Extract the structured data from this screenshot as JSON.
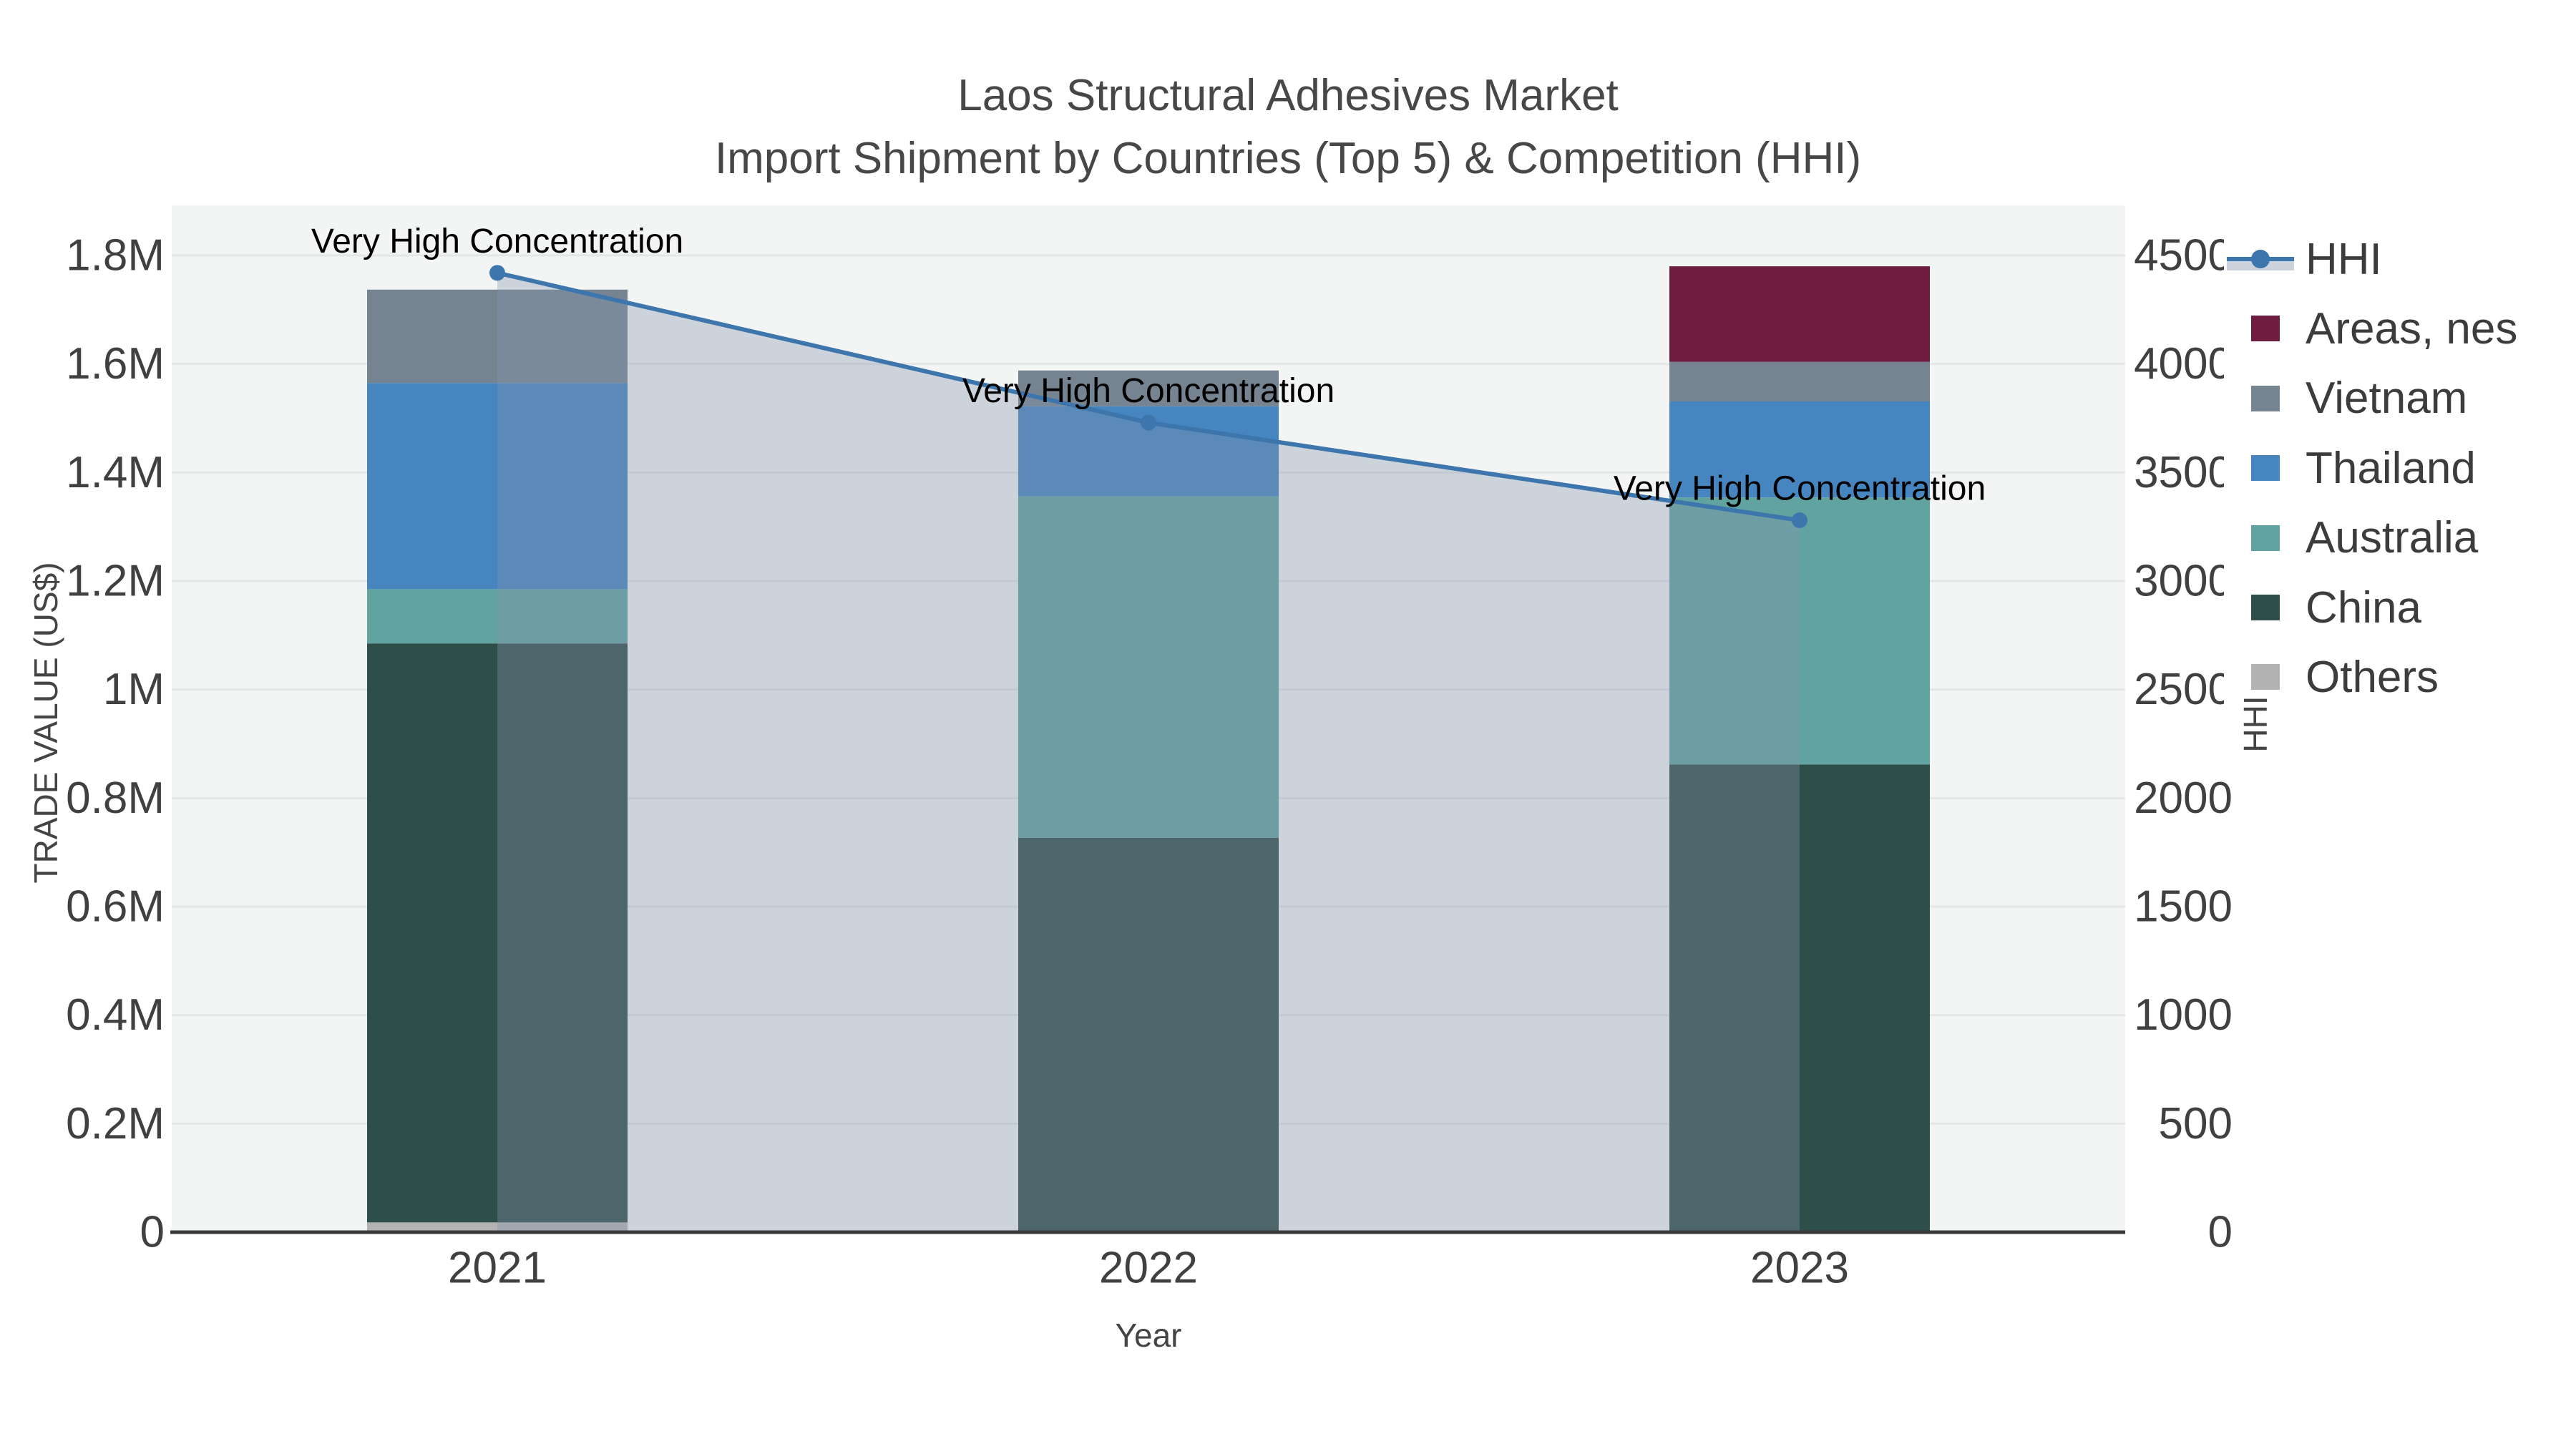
{
  "title": {
    "line1": "Laos Structural Adhesives Market",
    "line2": "Import Shipment by Countries (Top 5) & Competition (HHI)"
  },
  "chart_data": {
    "type": "bar+line",
    "title": "Laos Structural Adhesives Market — Import Shipment by Countries (Top 5) & Competition (HHI)",
    "xlabel": "Year",
    "ylabel_left": "TRADE VALUE (US$)",
    "ylabel_right": "HHI",
    "categories": [
      "2021",
      "2022",
      "2023"
    ],
    "stacked_bar_unit": "US$",
    "series": [
      {
        "name": "Others",
        "color": "#b3b3b3",
        "values": [
          18000,
          0,
          0
        ]
      },
      {
        "name": "China",
        "color": "#2d4e49",
        "values": [
          1067000,
          727000,
          862000
        ]
      },
      {
        "name": "Australia",
        "color": "#61a3a0",
        "values": [
          100000,
          629000,
          492000
        ]
      },
      {
        "name": "Thailand",
        "color": "#4685bf",
        "values": [
          380000,
          166000,
          177000
        ]
      },
      {
        "name": "Vietnam",
        "color": "#768492",
        "values": [
          172000,
          66000,
          73000
        ]
      },
      {
        "name": "Areas, nes",
        "color": "#6e1c3f",
        "values": [
          0,
          0,
          176000
        ]
      }
    ],
    "hhi_line": {
      "name": "HHI",
      "color": "#3d76ad",
      "fill_color": "rgba(135,150,172,0.35)",
      "values": [
        4420,
        3730,
        3280
      ]
    },
    "annotations": [
      "Very High Concentration",
      "Very High Concentration",
      "Very High Concentration"
    ],
    "left_axis": {
      "tick_labels": [
        "0",
        "0.2M",
        "0.4M",
        "0.6M",
        "0.8M",
        "1M",
        "1.2M",
        "1.4M",
        "1.6M",
        "1.8M"
      ],
      "tick_values": [
        0,
        200000,
        400000,
        600000,
        800000,
        1000000,
        1200000,
        1400000,
        1600000,
        1800000
      ],
      "max": 1892300,
      "grid": true
    },
    "right_axis": {
      "tick_labels": [
        "0",
        "500",
        "1000",
        "1500",
        "2000",
        "2500",
        "3000",
        "3500",
        "4000",
        "4500"
      ],
      "tick_values": [
        0,
        500,
        1000,
        1500,
        2000,
        2500,
        3000,
        3500,
        4000,
        4500
      ],
      "max": 4731,
      "grid": false
    },
    "legend": {
      "position": "right",
      "order": [
        "HHI",
        "Areas, nes",
        "Vietnam",
        "Thailand",
        "Australia",
        "China",
        "Others"
      ]
    },
    "colors": {
      "plot_background": "#f3f4f4",
      "gridline": "#e4e6e8",
      "axis_line": "#3a3a3a",
      "tick_text": "#404040",
      "annotation_text": "#000000"
    }
  }
}
